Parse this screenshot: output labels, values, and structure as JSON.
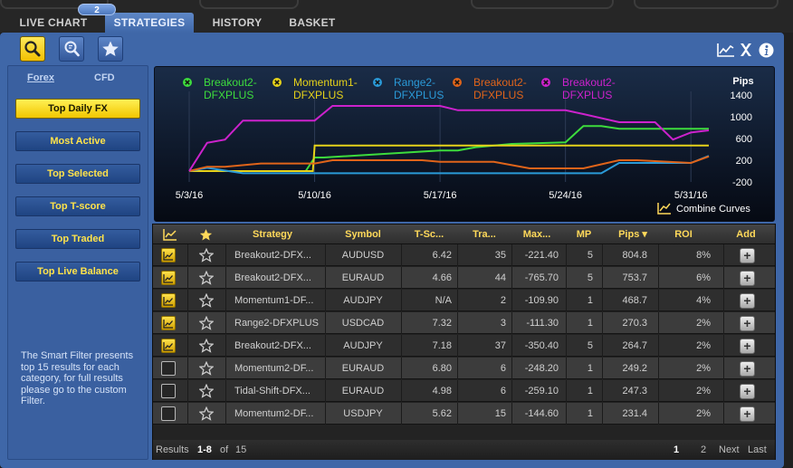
{
  "tabs": [
    {
      "label": "LIVE CHART"
    },
    {
      "label": "STRATEGIES"
    },
    {
      "label": "HISTORY"
    },
    {
      "label": "BASKET"
    }
  ],
  "tab_badge": "2",
  "toolbar": {
    "icons": [
      "search-icon",
      "zoom-search-icon",
      "favorites-star-icon",
      "chart-icon",
      "excel-icon",
      "info-icon"
    ]
  },
  "sidebar": {
    "tabs": [
      "Forex",
      "CFD"
    ],
    "buttons": [
      {
        "label": "Top Daily FX",
        "active": true
      },
      {
        "label": "Most Active",
        "active": false
      },
      {
        "label": "Top Selected",
        "active": false
      },
      {
        "label": "Top T-score",
        "active": false
      },
      {
        "label": "Top Traded",
        "active": false
      },
      {
        "label": "Top Live Balance",
        "active": false
      }
    ],
    "note": "The Smart Filter presents top 15 results for each category, for full results please go to the custom Filter."
  },
  "chart": {
    "legend": [
      {
        "line1": "Breakout2-",
        "line2": "DFXPLUS",
        "color": "#3ddc3d"
      },
      {
        "line1": "Momentum1-",
        "line2": "DFXPLUS",
        "color": "#e6d21a"
      },
      {
        "line1": "Range2-",
        "line2": "DFXPLUS",
        "color": "#2a9ad8"
      },
      {
        "line1": "Breakout2-",
        "line2": "DFXPLUS",
        "color": "#e0641a"
      },
      {
        "line1": "Breakout2-",
        "line2": "DFXPLUS",
        "color": "#cc22cc"
      }
    ],
    "combine_label": "Combine Curves"
  },
  "chart_data": {
    "type": "line",
    "ylabel": "Pips",
    "ylim": [
      -200,
      1400
    ],
    "yticks": [
      1400,
      1000,
      600,
      200,
      -200
    ],
    "ytick_labels": [
      "1400",
      "1000",
      "600",
      "200",
      "-200"
    ],
    "xlim": [
      0,
      29
    ],
    "xtick_positions": [
      0,
      7,
      14,
      21,
      28
    ],
    "xtick_labels": [
      "5/3/16",
      "5/10/16",
      "5/17/16",
      "5/24/16",
      "5/31/16"
    ],
    "series": [
      {
        "name": "Breakout2-DFXPLUS",
        "color": "#3ddc3d",
        "x": [
          0,
          3,
          6.5,
          7,
          7.5,
          14,
          15,
          16,
          18,
          21,
          22,
          23,
          24,
          29
        ],
        "y": [
          0,
          0,
          0,
          250,
          250,
          380,
          380,
          440,
          500,
          530,
          830,
          830,
          780,
          780
        ]
      },
      {
        "name": "Momentum1-DFXPLUS",
        "color": "#e6d21a",
        "x": [
          0,
          6.5,
          6.9,
          7,
          29
        ],
        "y": [
          0,
          0,
          0,
          470,
          470
        ]
      },
      {
        "name": "Range2-DFXPLUS",
        "color": "#2a9ad8",
        "x": [
          0,
          1,
          3,
          9,
          15,
          16,
          23,
          24,
          28,
          29
        ],
        "y": [
          0,
          60,
          -40,
          -40,
          -40,
          -40,
          -40,
          150,
          150,
          280
        ]
      },
      {
        "name": "Breakout2-DFXPLUS",
        "color": "#e0641a",
        "x": [
          0,
          1,
          2,
          4,
          7,
          8,
          13,
          14,
          17,
          19,
          21,
          22,
          24,
          25,
          28,
          29
        ],
        "y": [
          0,
          80,
          80,
          140,
          140,
          200,
          200,
          170,
          170,
          50,
          50,
          50,
          200,
          200,
          150,
          270
        ]
      },
      {
        "name": "Breakout2-DFXPLUS",
        "color": "#cc22cc",
        "x": [
          0,
          1,
          2,
          3,
          5,
          7,
          8,
          9,
          14,
          15,
          16,
          21,
          22,
          24,
          26,
          27,
          28,
          29
        ],
        "y": [
          0,
          520,
          580,
          930,
          930,
          930,
          1200,
          1200,
          1200,
          1120,
          1120,
          1120,
          1050,
          900,
          900,
          580,
          710,
          750
        ]
      }
    ]
  },
  "table": {
    "headers": [
      "",
      "",
      "Strategy",
      "Symbol",
      "T-Sc...",
      "Tra...",
      "Max...",
      "MP",
      "Pips ▾",
      "ROI",
      "Add"
    ],
    "rows": [
      {
        "chart_on": true,
        "strategy": "Breakout2-DFX...",
        "symbol": "AUDUSD",
        "tscore": "6.42",
        "trades": "35",
        "max": "-221.40",
        "mp": "5",
        "pips": "804.8",
        "roi": "8%"
      },
      {
        "chart_on": true,
        "strategy": "Breakout2-DFX...",
        "symbol": "EURAUD",
        "tscore": "4.66",
        "trades": "44",
        "max": "-765.70",
        "mp": "5",
        "pips": "753.7",
        "roi": "6%"
      },
      {
        "chart_on": true,
        "strategy": "Momentum1-DF...",
        "symbol": "AUDJPY",
        "tscore": "N/A",
        "trades": "2",
        "max": "-109.90",
        "mp": "1",
        "pips": "468.7",
        "roi": "4%"
      },
      {
        "chart_on": true,
        "strategy": "Range2-DFXPLUS",
        "symbol": "USDCAD",
        "tscore": "7.32",
        "trades": "3",
        "max": "-111.30",
        "mp": "1",
        "pips": "270.3",
        "roi": "2%"
      },
      {
        "chart_on": true,
        "strategy": "Breakout2-DFX...",
        "symbol": "AUDJPY",
        "tscore": "7.18",
        "trades": "37",
        "max": "-350.40",
        "mp": "5",
        "pips": "264.7",
        "roi": "2%"
      },
      {
        "chart_on": false,
        "strategy": "Momentum2-DF...",
        "symbol": "EURAUD",
        "tscore": "6.80",
        "trades": "6",
        "max": "-248.20",
        "mp": "1",
        "pips": "249.2",
        "roi": "2%"
      },
      {
        "chart_on": false,
        "strategy": "Tidal-Shift-DFX...",
        "symbol": "EURAUD",
        "tscore": "4.98",
        "trades": "6",
        "max": "-259.10",
        "mp": "1",
        "pips": "247.3",
        "roi": "2%"
      },
      {
        "chart_on": false,
        "strategy": "Momentum2-DF...",
        "symbol": "USDJPY",
        "tscore": "5.62",
        "trades": "15",
        "max": "-144.60",
        "mp": "1",
        "pips": "231.4",
        "roi": "2%"
      }
    ],
    "add_label": "+"
  },
  "footer": {
    "results_prefix": "Results",
    "range": "1-8",
    "of": "of",
    "total": "15",
    "pages": [
      "1",
      "2"
    ],
    "next": "Next",
    "last": "Last"
  }
}
